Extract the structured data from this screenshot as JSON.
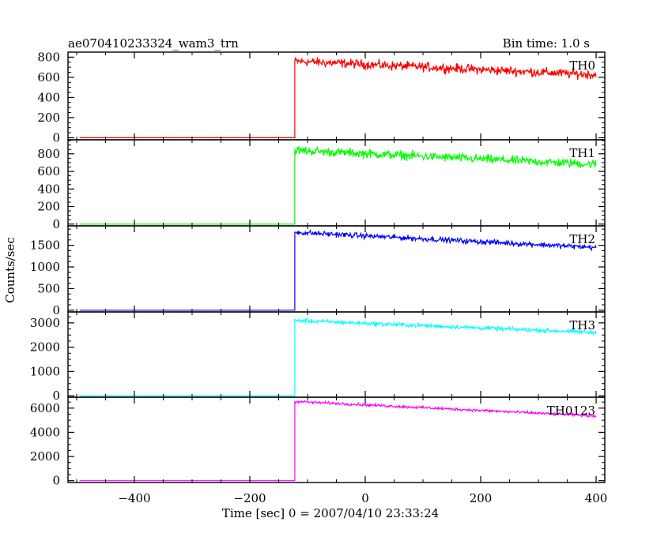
{
  "header": {
    "title": "ae070410233324_wam3_trn",
    "bin_time": "Bin time: 1.0 s"
  },
  "axes": {
    "xlabel": "Time [sec] 0 = 2007/04/10 23:33:24",
    "ylabel": "Counts/sec"
  },
  "chart_data": [
    {
      "type": "line",
      "name": "TH0",
      "color": "#ff0000",
      "xlim": [
        -515,
        415
      ],
      "ylim": [
        -20,
        850
      ],
      "yticks": [
        0,
        200,
        400,
        600,
        800
      ],
      "xticks": [
        -400,
        -200,
        0,
        200,
        400
      ],
      "step_time": -122,
      "baseline": 0,
      "level_start": 760,
      "level_end": 625,
      "noise": 45,
      "x_range": [
        -495,
        400
      ]
    },
    {
      "type": "line",
      "name": "TH1",
      "color": "#00ff00",
      "xlim": [
        -515,
        415
      ],
      "ylim": [
        -20,
        960
      ],
      "yticks": [
        0,
        200,
        400,
        600,
        800
      ],
      "xticks": [
        -400,
        -200,
        0,
        200,
        400
      ],
      "step_time": -122,
      "baseline": 0,
      "level_start": 840,
      "level_end": 680,
      "noise": 50,
      "x_range": [
        -495,
        400
      ]
    },
    {
      "type": "line",
      "name": "TH2",
      "color": "#0000ff",
      "xlim": [
        -515,
        415
      ],
      "ylim": [
        -40,
        1950
      ],
      "yticks": [
        0,
        500,
        1000,
        1500
      ],
      "xticks": [
        -400,
        -200,
        0,
        200,
        400
      ],
      "step_time": -122,
      "baseline": 0,
      "level_start": 1800,
      "level_end": 1450,
      "noise": 60,
      "x_range": [
        -495,
        400
      ]
    },
    {
      "type": "line",
      "name": "TH3",
      "color": "#00ffff",
      "xlim": [
        -515,
        415
      ],
      "ylim": [
        -60,
        3450
      ],
      "yticks": [
        0,
        1000,
        2000,
        3000
      ],
      "xticks": [
        -400,
        -200,
        0,
        200,
        400
      ],
      "step_time": -122,
      "baseline": 0,
      "level_start": 3100,
      "level_end": 2600,
      "noise": 80,
      "x_range": [
        -495,
        400
      ]
    },
    {
      "type": "line",
      "name": "TH0123",
      "color": "#ff00ff",
      "xlim": [
        -515,
        415
      ],
      "ylim": [
        -150,
        6900
      ],
      "yticks": [
        0,
        2000,
        4000,
        6000
      ],
      "xticks": [
        -400,
        -200,
        0,
        200,
        400
      ],
      "step_time": -122,
      "baseline": 0,
      "level_start": 6550,
      "level_end": 5350,
      "noise": 110,
      "x_range": [
        -495,
        400
      ]
    }
  ]
}
